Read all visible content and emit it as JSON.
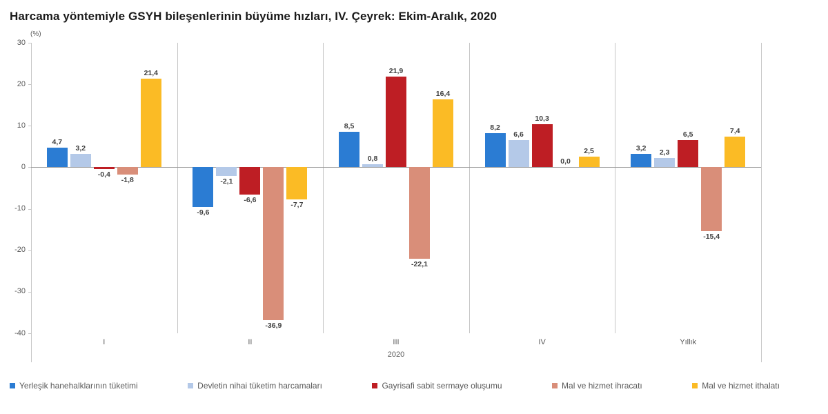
{
  "title": "Harcama yöntemiyle GSYH bileşenlerinin büyüme hızları, IV. Çeyrek: Ekim-Aralık, 2020",
  "chart_data": {
    "type": "bar",
    "title": "Harcama yöntemiyle GSYH bileşenlerinin büyüme hızları, IV. Çeyrek: Ekim-Aralık, 2020",
    "unit_label": "(%)",
    "categories": [
      "I",
      "II",
      "III",
      "IV",
      "Yıllık"
    ],
    "x_axis_year": "2020",
    "series": [
      {
        "name": "Yerleşik hanehalklarının  tüketimi",
        "color": "#2b7cd3",
        "values": [
          4.7,
          -9.6,
          8.5,
          8.2,
          3.2
        ]
      },
      {
        "name": "Devletin nihai  tüketim  harcamaları",
        "color": "#b4c9e8",
        "values": [
          3.2,
          -2.1,
          0.8,
          6.6,
          2.3
        ]
      },
      {
        "name": "Gayrisafi sabit sermaye oluşumu",
        "color": "#be1e24",
        "values": [
          -0.4,
          -6.6,
          21.9,
          10.3,
          6.5
        ]
      },
      {
        "name": "Mal ve hizmet  ihracatı",
        "color": "#d98e79",
        "values": [
          -1.8,
          -36.9,
          -22.1,
          0.0,
          -15.4
        ]
      },
      {
        "name": "Mal ve hizmet  ithalatı",
        "color": "#fbbb25",
        "values": [
          21.4,
          -7.7,
          16.4,
          2.5,
          7.4
        ]
      }
    ],
    "ylim": [
      -40,
      30
    ],
    "yticks": [
      30,
      20,
      10,
      0,
      -10,
      -20,
      -30,
      -40
    ],
    "legend_position": "bottom",
    "grid": false,
    "decimal_separator": ","
  },
  "colors": {
    "axis_line": "#c6c6c6",
    "zero_line": "#9a9a9a",
    "tick_text": "#595959",
    "value_text": "#3f3f3f",
    "title_text": "#1a1a1a",
    "legend_text": "#595959",
    "background": "#ffffff"
  }
}
